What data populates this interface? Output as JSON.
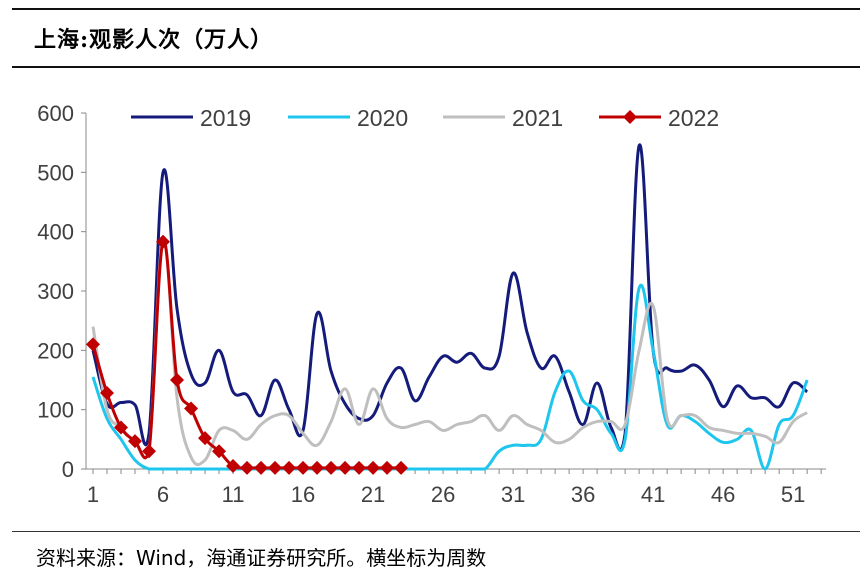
{
  "title": "上海:观影人次（万人）",
  "source": "资料来源：Wind，海通证券研究所。横坐标为周数",
  "colors": {
    "2019": "#141b7a",
    "2020": "#1ec6ee",
    "2021": "#bfbfbf",
    "2022": "#c00000"
  },
  "chart_data": {
    "type": "line",
    "title": "上海:观影人次（万人）",
    "xlabel": "",
    "ylabel": "",
    "xlim": [
      1,
      53
    ],
    "ylim": [
      0,
      600
    ],
    "xticks": [
      1,
      6,
      11,
      16,
      21,
      26,
      31,
      36,
      41,
      46,
      51
    ],
    "yticks": [
      0,
      100,
      200,
      300,
      400,
      500,
      600
    ],
    "grid": false,
    "legend_position": "top",
    "series": [
      {
        "name": "2019",
        "x": [
          1,
          2,
          3,
          4,
          5,
          6,
          7,
          8,
          9,
          10,
          11,
          12,
          13,
          14,
          15,
          16,
          17,
          18,
          19,
          20,
          21,
          22,
          23,
          24,
          25,
          26,
          27,
          28,
          29,
          30,
          31,
          32,
          33,
          34,
          35,
          36,
          37,
          38,
          39,
          40,
          41,
          42,
          43,
          44,
          45,
          46,
          47,
          48,
          49,
          50,
          51,
          52
        ],
        "values": [
          200,
          110,
          112,
          108,
          60,
          500,
          270,
          160,
          145,
          200,
          130,
          125,
          90,
          150,
          100,
          65,
          262,
          165,
          110,
          85,
          90,
          145,
          170,
          115,
          155,
          190,
          180,
          195,
          170,
          190,
          330,
          230,
          170,
          190,
          130,
          75,
          145,
          70,
          60,
          545,
          200,
          170,
          165,
          175,
          150,
          105,
          140,
          120,
          120,
          105,
          145,
          130
        ]
      },
      {
        "name": "2020",
        "x": [
          1,
          2,
          3,
          4,
          5,
          6,
          7,
          8,
          9,
          10,
          11,
          12,
          13,
          14,
          15,
          16,
          17,
          18,
          19,
          20,
          21,
          22,
          23,
          24,
          25,
          26,
          27,
          28,
          29,
          30,
          31,
          32,
          33,
          34,
          35,
          36,
          37,
          38,
          39,
          40,
          41,
          42,
          43,
          44,
          45,
          46,
          47,
          48,
          49,
          50,
          51,
          52
        ],
        "values": [
          155,
          85,
          50,
          15,
          0,
          0,
          0,
          0,
          0,
          0,
          0,
          0,
          0,
          0,
          0,
          0,
          0,
          0,
          0,
          0,
          0,
          0,
          0,
          0,
          0,
          0,
          0,
          0,
          0,
          30,
          40,
          40,
          50,
          130,
          165,
          115,
          100,
          60,
          50,
          305,
          200,
          75,
          90,
          80,
          60,
          45,
          50,
          65,
          0,
          75,
          90,
          150
        ]
      },
      {
        "name": "2021",
        "x": [
          1,
          2,
          3,
          4,
          5,
          6,
          7,
          8,
          9,
          10,
          11,
          12,
          13,
          14,
          15,
          16,
          17,
          18,
          19,
          20,
          21,
          22,
          23,
          24,
          25,
          26,
          27,
          28,
          29,
          30,
          31,
          32,
          33,
          34,
          35,
          36,
          37,
          38,
          39,
          40,
          41,
          42,
          43,
          44,
          45,
          46,
          47,
          48,
          49,
          50,
          51,
          52
        ],
        "values": [
          240,
          100,
          70,
          45,
          30,
          390,
          120,
          20,
          15,
          65,
          65,
          50,
          75,
          90,
          90,
          60,
          40,
          80,
          135,
          75,
          135,
          85,
          70,
          75,
          80,
          65,
          75,
          80,
          90,
          65,
          90,
          75,
          65,
          45,
          50,
          70,
          80,
          80,
          75,
          200,
          275,
          85,
          90,
          90,
          70,
          65,
          60,
          60,
          55,
          45,
          80,
          95
        ]
      },
      {
        "name": "2022",
        "x": [
          1,
          2,
          3,
          4,
          5,
          6,
          7,
          8,
          9,
          10,
          11,
          12,
          13,
          14,
          15,
          16,
          17,
          18,
          19,
          20,
          21,
          22,
          23
        ],
        "values": [
          210,
          128,
          70,
          47,
          30,
          383,
          150,
          102,
          52,
          30,
          5,
          2,
          2,
          2,
          2,
          2,
          2,
          2,
          2,
          2,
          2,
          2,
          2
        ]
      }
    ]
  }
}
